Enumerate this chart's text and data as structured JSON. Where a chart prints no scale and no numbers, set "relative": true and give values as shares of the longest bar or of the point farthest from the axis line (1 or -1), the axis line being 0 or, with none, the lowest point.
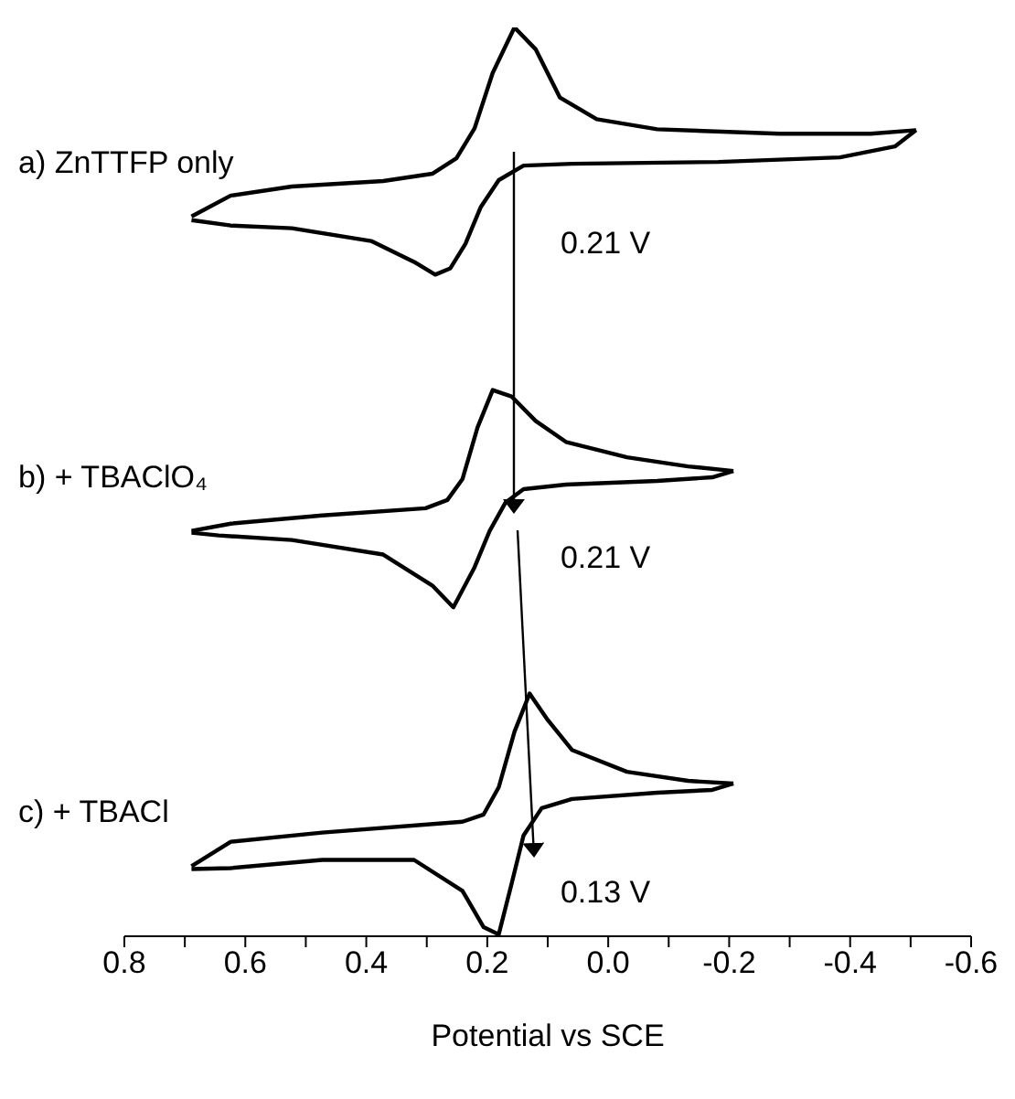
{
  "chart_data": {
    "type": "line",
    "relative": true,
    "xlabel": "Potential vs SCE",
    "xlim": [
      0.8,
      -0.6
    ],
    "xticks": [
      0.8,
      {
        "value": 0.7,
        "label": null
      },
      0.6,
      {
        "value": 0.5,
        "label": null
      },
      0.4,
      {
        "value": 0.3,
        "label": null
      },
      0.2,
      {
        "value": 0.1,
        "label": null
      },
      {
        "value": 0,
        "label": "0.0"
      },
      {
        "value": -0.1,
        "label": null
      },
      -0.2,
      {
        "value": -0.3,
        "label": null
      },
      -0.4,
      {
        "value": -0.5,
        "label": null
      },
      -0.6
    ],
    "marker": "none",
    "line_style": "solid",
    "grid": false,
    "legend": false,
    "annotations": [
      "0.21 V",
      "0.21 V",
      "0.13 V"
    ],
    "series": [
      {
        "name": "a) ZnTTFP only",
        "color": "#000000",
        "x": [
          0.689,
          0.624,
          0.523,
          0.372,
          0.291,
          0.251,
          0.221,
          0.191,
          0.155,
          0.12,
          0.08,
          0.019,
          -0.081,
          -0.283,
          -0.434,
          -0.509
        ],
        "values": [
          0.792,
          0.815,
          0.825,
          0.831,
          0.839,
          0.856,
          0.889,
          0.95,
          1,
          0.976,
          0.923,
          0.899,
          0.888,
          0.883,
          0.883,
          0.887
        ]
      },
      {
        "color": "#000000",
        "x": [
          -0.509,
          -0.474,
          -0.383,
          -0.182,
          0.06,
          0.14,
          0.181,
          0.211,
          0.236,
          0.261,
          0.286,
          0.321,
          0.392,
          0.523,
          0.624,
          0.689
        ],
        "values": [
          0.887,
          0.869,
          0.857,
          0.852,
          0.85,
          0.848,
          0.832,
          0.802,
          0.762,
          0.735,
          0.728,
          0.742,
          0.765,
          0.779,
          0.782,
          0.788
        ]
      },
      {
        "name": "b) + TBAClO₄",
        "color": "#000000",
        "x": [
          0.689,
          0.624,
          0.473,
          0.302,
          0.266,
          0.241,
          0.216,
          0.191,
          0.16,
          0.12,
          0.07,
          -0.031,
          -0.132,
          -0.207
        ],
        "values": [
          0.446,
          0.454,
          0.463,
          0.471,
          0.48,
          0.503,
          0.56,
          0.601,
          0.594,
          0.567,
          0.544,
          0.527,
          0.517,
          0.512
        ]
      },
      {
        "color": "#000000",
        "x": [
          -0.207,
          -0.172,
          -0.081,
          0.07,
          0.14,
          0.17,
          0.196,
          0.221,
          0.256,
          0.291,
          0.372,
          0.523,
          0.644,
          0.689
        ],
        "values": [
          0.512,
          0.505,
          0.501,
          0.497,
          0.492,
          0.477,
          0.446,
          0.406,
          0.362,
          0.386,
          0.42,
          0.436,
          0.441,
          0.444
        ]
      },
      {
        "name": "c) + TBACl",
        "color": "#000000",
        "x": [
          0.689,
          0.624,
          0.473,
          0.241,
          0.206,
          0.181,
          0.155,
          0.13,
          0.1,
          0.06,
          -0.031,
          -0.132,
          -0.207
        ],
        "values": [
          0.077,
          0.104,
          0.114,
          0.126,
          0.134,
          0.164,
          0.225,
          0.267,
          0.238,
          0.205,
          0.181,
          0.171,
          0.168
        ]
      },
      {
        "color": "#000000",
        "x": [
          -0.207,
          -0.172,
          -0.081,
          0.06,
          0.11,
          0.14,
          0.16,
          0.181,
          0.206,
          0.241,
          0.321,
          0.473,
          0.624,
          0.689
        ],
        "values": [
          0.168,
          0.161,
          0.158,
          0.151,
          0.141,
          0.111,
          0.057,
          0.002,
          0.01,
          0.05,
          0.084,
          0.084,
          0.075,
          0.074
        ]
      }
    ]
  }
}
